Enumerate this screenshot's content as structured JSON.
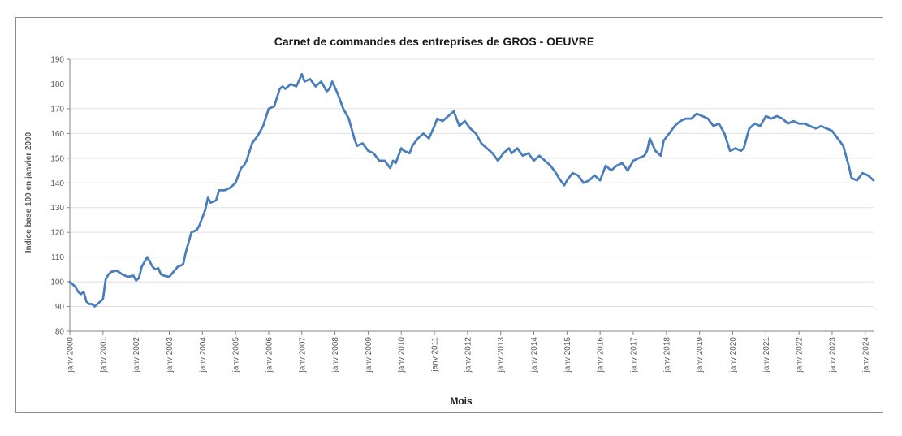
{
  "chart_data": {
    "type": "line",
    "title": "Carnet de commandes des entreprises de GROS - OEUVRE",
    "xlabel": "Mois",
    "ylabel": "Indice base 100 en janvier 2000",
    "ylim": [
      80,
      190
    ],
    "yticks": [
      80,
      90,
      100,
      110,
      120,
      130,
      140,
      150,
      160,
      170,
      180,
      190
    ],
    "x_tick_labels": [
      "janv 2000",
      "janv 2001",
      "janv 2002",
      "janv 2003",
      "janv 2004",
      "janv 2005",
      "janv 2006",
      "janv 2007",
      "janv 2008",
      "janv 2009",
      "janv 2010",
      "janv 2011",
      "janv 2012",
      "janv 2013",
      "janv 2014",
      "janv 2015",
      "janv 2016",
      "janv 2017",
      "janv 2018",
      "janv 2019",
      "janv 2020",
      "janv 2021",
      "janv 2022",
      "janv 2023",
      "janv 2024"
    ],
    "grid": "horizontal",
    "legend": "none",
    "line_color": "#4a7ebb",
    "series": [
      {
        "x": [
          "2000-01",
          "2000-03",
          "2000-04",
          "2000-05",
          "2000-06",
          "2000-07",
          "2000-08",
          "2000-09",
          "2000-10",
          "2000-11",
          "2001-01",
          "2001-02",
          "2001-03",
          "2001-04",
          "2001-06",
          "2001-08",
          "2001-10",
          "2001-12",
          "2002-01",
          "2002-02",
          "2002-03",
          "2002-05",
          "2002-07",
          "2002-08",
          "2002-09",
          "2002-10",
          "2002-11",
          "2003-01",
          "2003-04",
          "2003-06",
          "2003-07",
          "2003-09",
          "2003-11",
          "2003-12",
          "2004-01",
          "2004-02",
          "2004-03",
          "2004-04",
          "2004-06",
          "2004-07",
          "2004-09",
          "2004-11",
          "2005-01",
          "2005-03",
          "2005-04",
          "2005-05",
          "2005-07",
          "2005-09",
          "2005-11",
          "2006-01",
          "2006-03",
          "2006-05",
          "2006-06",
          "2006-07",
          "2006-09",
          "2006-11",
          "2007-01",
          "2007-02",
          "2007-04",
          "2007-06",
          "2007-08",
          "2007-10",
          "2007-11",
          "2007-12",
          "2008-02",
          "2008-04",
          "2008-06",
          "2008-08",
          "2008-09",
          "2008-11",
          "2009-01",
          "2009-03",
          "2009-05",
          "2009-07",
          "2009-09",
          "2009-10",
          "2009-11",
          "2010-01",
          "2010-02",
          "2010-04",
          "2010-05",
          "2010-07",
          "2010-09",
          "2010-11",
          "2011-01",
          "2011-02",
          "2011-04",
          "2011-06",
          "2011-08",
          "2011-10",
          "2011-12",
          "2012-02",
          "2012-04",
          "2012-06",
          "2012-08",
          "2012-10",
          "2012-12",
          "2013-02",
          "2013-04",
          "2013-05",
          "2013-07",
          "2013-09",
          "2013-11",
          "2014-01",
          "2014-03",
          "2014-05",
          "2014-07",
          "2014-09",
          "2014-10",
          "2014-12",
          "2015-01",
          "2015-03",
          "2015-05",
          "2015-07",
          "2015-09",
          "2015-11",
          "2016-01",
          "2016-03",
          "2016-05",
          "2016-07",
          "2016-09",
          "2016-11",
          "2017-01",
          "2017-03",
          "2017-05",
          "2017-06",
          "2017-07",
          "2017-09",
          "2017-11",
          "2017-12",
          "2018-02",
          "2018-04",
          "2018-06",
          "2018-08",
          "2018-10",
          "2018-12",
          "2019-02",
          "2019-04",
          "2019-06",
          "2019-08",
          "2019-10",
          "2019-12",
          "2020-02",
          "2020-04",
          "2020-05",
          "2020-07",
          "2020-09",
          "2020-11",
          "2021-01",
          "2021-03",
          "2021-05",
          "2021-07",
          "2021-09",
          "2021-11",
          "2022-01",
          "2022-03",
          "2022-05",
          "2022-07",
          "2022-09",
          "2022-11",
          "2023-01",
          "2023-03",
          "2023-05",
          "2023-07",
          "2023-08",
          "2023-10",
          "2023-12",
          "2024-02",
          "2024-04"
        ],
        "y": [
          100,
          98,
          96,
          95,
          96,
          92,
          91,
          91,
          90,
          91,
          93,
          101,
          103,
          104,
          104.5,
          103,
          102,
          102.5,
          100.5,
          101.5,
          106,
          110,
          106,
          105,
          105.5,
          103,
          102.5,
          102,
          106,
          107,
          112,
          120,
          121,
          123,
          126,
          129,
          134,
          132,
          133,
          137,
          137,
          138,
          140,
          146,
          147,
          149,
          156,
          159,
          163,
          170,
          171,
          178,
          179,
          178,
          180,
          179,
          184,
          181,
          182,
          179,
          181,
          177,
          178,
          181,
          176,
          170,
          166,
          158,
          155,
          156,
          153,
          152,
          149,
          149,
          146,
          149,
          148,
          154,
          153,
          152,
          155,
          158,
          160,
          158,
          163,
          166,
          165,
          167,
          169,
          163,
          165,
          162,
          160,
          156,
          154,
          152,
          149,
          152,
          154,
          152,
          154,
          151,
          152,
          149,
          151,
          149,
          147,
          144,
          142,
          139,
          141,
          144,
          143,
          140,
          141,
          143,
          141,
          147,
          145,
          147,
          148,
          145,
          149,
          150,
          151,
          153,
          158,
          153,
          151,
          157,
          160,
          163,
          165,
          166,
          166,
          168,
          167,
          166,
          163,
          164,
          160,
          153,
          154,
          153,
          154,
          162,
          164,
          163,
          167,
          166,
          167,
          166,
          164,
          165,
          164,
          164,
          163,
          162,
          163,
          162,
          161,
          158,
          155,
          147,
          142,
          141,
          144,
          143,
          141
        ]
      }
    ]
  }
}
